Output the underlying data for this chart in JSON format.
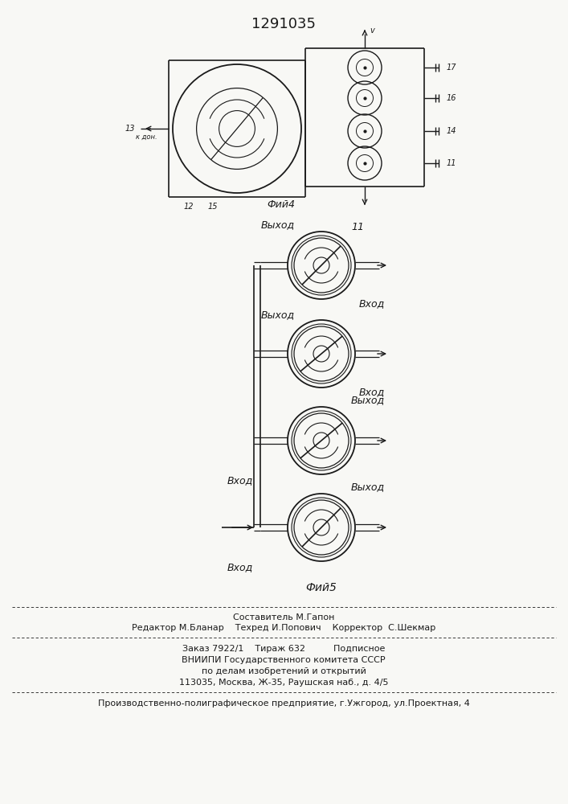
{
  "title": "1291035",
  "fig4_label": "Фий4",
  "fig5_label": "Фий5",
  "bg_color": "#f8f8f5",
  "line_color": "#1a1a1a",
  "footer_lines": [
    "Составитель М.Гапон",
    "Редактор М.Бланар    Техред И.Попович    Корректор  С.Шекмар",
    "Заказ 7922/1    Тираж 632          Подписное",
    "ВНИИПИ Государственного комитета СССР",
    "по делам изобретений и открытий",
    "113035, Москва, Ж-35, Раушская наб., д. 4/5",
    "Производственно-полиграфическое предприятие, г.Ужгород, ул.Проектная, 4"
  ]
}
